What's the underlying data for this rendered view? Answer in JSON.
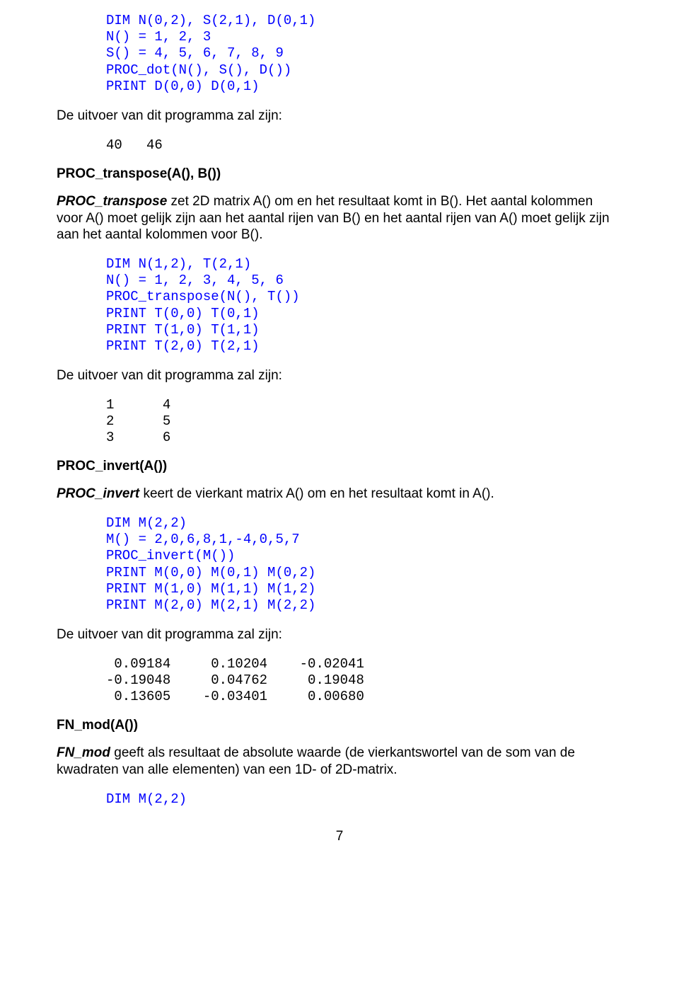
{
  "code1": "DIM N(0,2), S(2,1), D(0,1)\nN() = 1, 2, 3\nS() = 4, 5, 6, 7, 8, 9\nPROC_dot(N(), S(), D())\nPRINT D(0,0) D(0,1)",
  "outLabel": "De uitvoer van dit programma zal zijn:",
  "out1": "40   46",
  "h1": "PROC_transpose(A(), B())",
  "p1a": "PROC_transpose",
  "p1b": " zet 2D matrix A() om en het resultaat komt in B(). Het aantal kolommen voor A() moet gelijk zijn aan het aantal rijen van B() en het aantal rijen van A() moet gelijk zijn aan het aantal kolommen voor B().",
  "code2": "DIM N(1,2), T(2,1)\nN() = 1, 2, 3, 4, 5, 6\nPROC_transpose(N(), T())\nPRINT T(0,0) T(0,1)\nPRINT T(1,0) T(1,1)\nPRINT T(2,0) T(2,1)",
  "out2": "1      4\n2      5\n3      6",
  "h2": "PROC_invert(A())",
  "p2a": "PROC_invert",
  "p2b": " keert de vierkant matrix A() om en het resultaat komt in A().",
  "code3": "DIM M(2,2)\nM() = 2,0,6,8,1,-4,0,5,7\nPROC_invert(M())\nPRINT M(0,0) M(0,1) M(0,2)\nPRINT M(1,0) M(1,1) M(1,2)\nPRINT M(2,0) M(2,1) M(2,2)",
  "out3": " 0.09184     0.10204    -0.02041\n-0.19048     0.04762     0.19048\n 0.13605    -0.03401     0.00680",
  "h3": "FN_mod(A())",
  "p3a": "FN_mod",
  "p3b": " geeft als resultaat de absolute waarde (de vierkantswortel van de som van de kwadraten van alle elementen) van een 1D- of 2D-matrix.",
  "code4": "DIM M(2,2)",
  "pagenum": "7"
}
